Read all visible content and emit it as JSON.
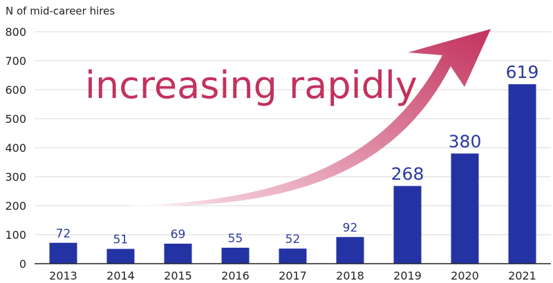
{
  "chart_data": {
    "type": "bar",
    "ylabel": "N of mid-career hires",
    "annotation": "increasing rapidly",
    "categories": [
      "2013",
      "2014",
      "2015",
      "2016",
      "2017",
      "2018",
      "2019",
      "2020",
      "2021"
    ],
    "values": [
      72,
      51,
      69,
      55,
      52,
      92,
      268,
      380,
      619
    ],
    "ylim": [
      0,
      800
    ],
    "yticks": [
      "0",
      "100",
      "200",
      "300",
      "400",
      "500",
      "600",
      "700",
      "800"
    ],
    "grid": true,
    "colors": {
      "bar": "#2433a3",
      "label": "#2a39a0",
      "annotation": "#c2325d",
      "arrow_start": "#f2c6d3",
      "arrow_end": "#c2325d",
      "grid": "#d9d9d9"
    }
  }
}
